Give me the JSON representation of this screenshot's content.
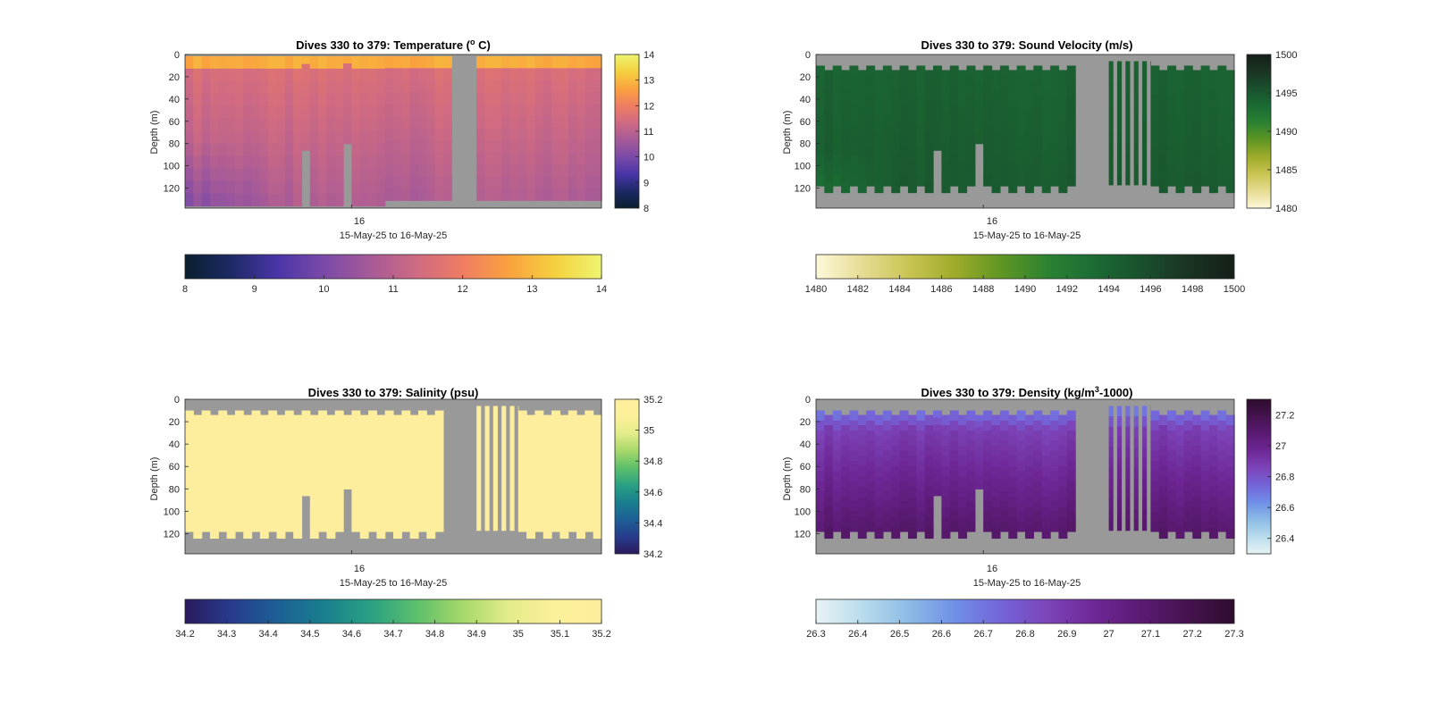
{
  "figure": {
    "background": "#ffffff",
    "mask_color": "#999999"
  },
  "chart_data": [
    {
      "type": "heatmap",
      "title_main": "Dives 330 to 379: Temperature (",
      "title_sup": "o",
      "title_tail": " C)",
      "ylabel": "Depth (m)",
      "xlabel": "15-May-25 to 16-May-25",
      "xtick_label": "16",
      "yticks": [
        0,
        20,
        40,
        60,
        80,
        100,
        120
      ],
      "ylim": [
        0,
        138
      ],
      "colormap": [
        "#0a1f2e",
        "#1d2a66",
        "#4a35a8",
        "#7a4aa8",
        "#a65a98",
        "#cf6a82",
        "#ef7d62",
        "#f9a23e",
        "#f5d03f",
        "#eef570"
      ],
      "color_range": [
        8,
        14
      ],
      "side_colorbar_ticks": [
        8,
        9,
        10,
        11,
        12,
        13,
        14
      ],
      "bottom_colorbar_ticks": [
        8,
        9,
        10,
        11,
        12,
        13,
        14
      ],
      "dives": 50,
      "missing_dives": [
        32,
        33,
        34
      ],
      "field": "temperature"
    },
    {
      "type": "heatmap",
      "title_main": "Dives 330 to 379: Sound Velocity (m/s)",
      "title_sup": "",
      "title_tail": "",
      "ylabel": "Depth (m)",
      "xlabel": "15-May-25 to 16-May-25",
      "xtick_label": "16",
      "yticks": [
        0,
        20,
        40,
        60,
        80,
        100,
        120
      ],
      "ylim": [
        0,
        138
      ],
      "colormap": [
        "#fdf9d9",
        "#e6dc93",
        "#c9c453",
        "#9eab2a",
        "#5f9623",
        "#2b8232",
        "#1b6b34",
        "#1a502d",
        "#1a3423",
        "#151f17"
      ],
      "color_range": [
        1480,
        1500
      ],
      "side_colorbar_ticks": [
        1480,
        1485,
        1490,
        1495,
        1500
      ],
      "bottom_colorbar_ticks": [
        1480,
        1482,
        1484,
        1486,
        1488,
        1490,
        1492,
        1494,
        1496,
        1498,
        1500
      ],
      "dives": 50,
      "missing_dives": [
        31,
        32,
        33,
        34
      ],
      "field": "sound_velocity"
    },
    {
      "type": "heatmap",
      "title_main": "Dives 330 to 379: Salinity (psu)",
      "title_sup": "",
      "title_tail": "",
      "ylabel": "Depth (m)",
      "xlabel": "15-May-25 to 16-May-25",
      "xtick_label": "16",
      "yticks": [
        0,
        20,
        40,
        60,
        80,
        100,
        120
      ],
      "ylim": [
        0,
        138
      ],
      "colormap": [
        "#2a1a5e",
        "#273c8c",
        "#1d5f96",
        "#197f8e",
        "#2aa083",
        "#5cbf6b",
        "#a6d86a",
        "#e3ec8a",
        "#fdf09a",
        "#fdee9d"
      ],
      "color_range": [
        34.2,
        35.2
      ],
      "side_colorbar_ticks": [
        34.2,
        34.4,
        34.6,
        34.8,
        35,
        35.2
      ],
      "bottom_colorbar_ticks": [
        34.2,
        34.3,
        34.4,
        34.5,
        34.6,
        34.7,
        34.8,
        34.9,
        35,
        35.1,
        35.2
      ],
      "dives": 50,
      "missing_dives": [
        31,
        32,
        33,
        34
      ],
      "field": "salinity"
    },
    {
      "type": "heatmap",
      "title_main": "Dives 330 to 379: Density (kg/m",
      "title_sup": "3",
      "title_tail": "-1000)",
      "ylabel": "Depth (m)",
      "xlabel": "15-May-25 to 16-May-25",
      "xtick_label": "16",
      "yticks": [
        0,
        20,
        40,
        60,
        80,
        100,
        120
      ],
      "ylim": [
        0,
        138
      ],
      "colormap": [
        "#e8f3f5",
        "#b9dcec",
        "#8cbbe6",
        "#6f8fe6",
        "#7464d9",
        "#7c44b8",
        "#6e2796",
        "#5a1a72",
        "#45134f",
        "#2e0c2e"
      ],
      "color_range": [
        26.3,
        27.3
      ],
      "side_colorbar_ticks": [
        26.4,
        26.6,
        26.8,
        27,
        27.2
      ],
      "bottom_colorbar_ticks": [
        26.3,
        26.4,
        26.5,
        26.6,
        26.7,
        26.8,
        26.9,
        27,
        27.1,
        27.2,
        27.3
      ],
      "dives": 50,
      "missing_dives": [
        31,
        32,
        33,
        34
      ],
      "field": "density"
    }
  ]
}
